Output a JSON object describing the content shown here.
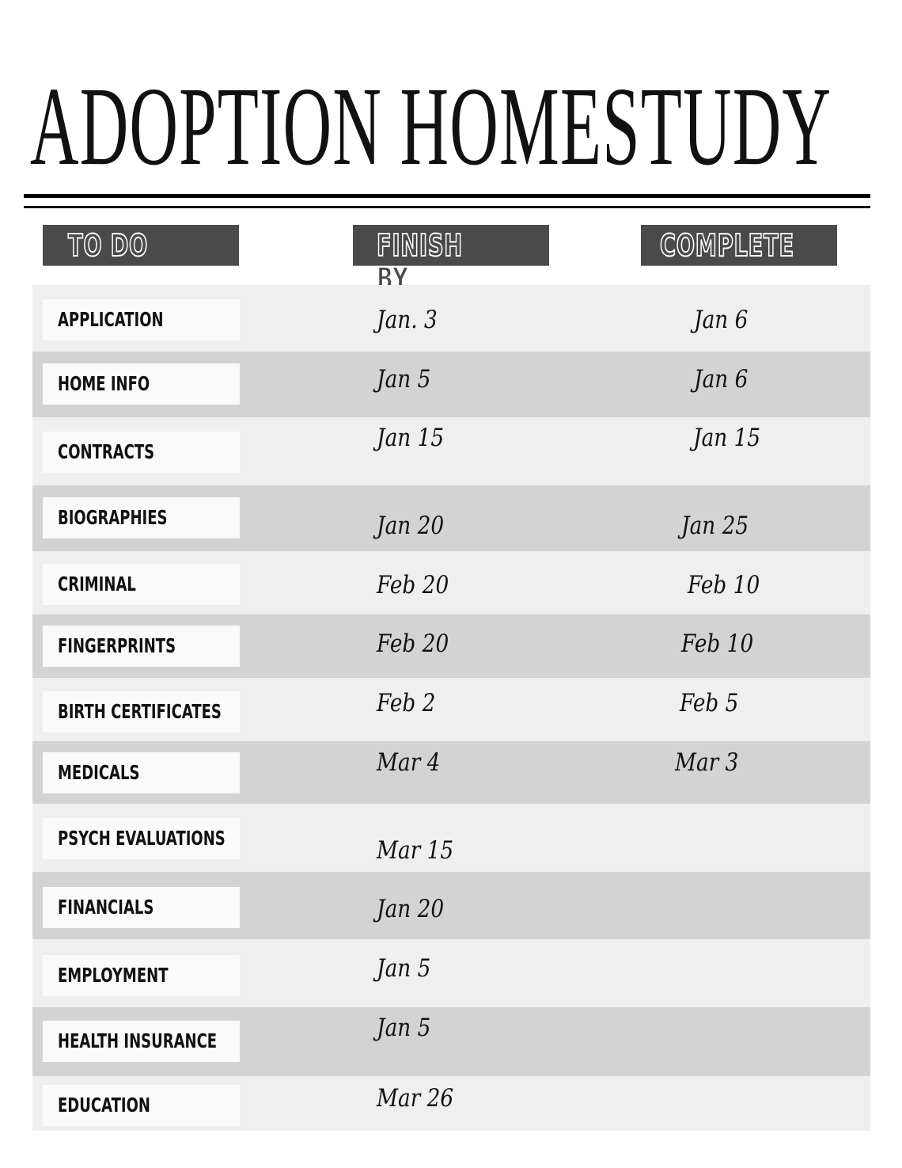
{
  "title": "ADOPTION HOMESTUDY",
  "headers": {
    "todo": "TO DO",
    "finish_by": "FINISH BY",
    "complete": "COMPLETE"
  },
  "colors": {
    "header_bg": "#4a4a4a",
    "row_light": "#efefef",
    "row_dark": "#d3d3d3"
  },
  "rows": [
    {
      "task": "APPLICATION",
      "finish_by": "Jan. 3",
      "complete": "Jan 6"
    },
    {
      "task": "HOME INFO",
      "finish_by": "Jan 5",
      "complete": "Jan 6"
    },
    {
      "task": "CONTRACTS",
      "finish_by": "Jan 15",
      "complete": "Jan 15"
    },
    {
      "task": "BIOGRAPHIES",
      "finish_by": "Jan 20",
      "complete": "Jan 25"
    },
    {
      "task": "CRIMINAL",
      "finish_by": "Feb 20",
      "complete": "Feb 10"
    },
    {
      "task": "FINGERPRINTS",
      "finish_by": "Feb 20",
      "complete": "Feb 10"
    },
    {
      "task": "BIRTH CERTIFICATES",
      "finish_by": "Feb 2",
      "complete": "Feb 5"
    },
    {
      "task": "MEDICALS",
      "finish_by": "Mar 4",
      "complete": "Mar 3"
    },
    {
      "task": "PSYCH EVALUATIONS",
      "finish_by": "Mar 15",
      "complete": ""
    },
    {
      "task": "FINANCIALS",
      "finish_by": "Jan 20",
      "complete": ""
    },
    {
      "task": "EMPLOYMENT",
      "finish_by": "Jan 5",
      "complete": ""
    },
    {
      "task": "HEALTH INSURANCE",
      "finish_by": "Jan 5",
      "complete": ""
    },
    {
      "task": "EDUCATION",
      "finish_by": "Mar 26",
      "complete": ""
    }
  ]
}
